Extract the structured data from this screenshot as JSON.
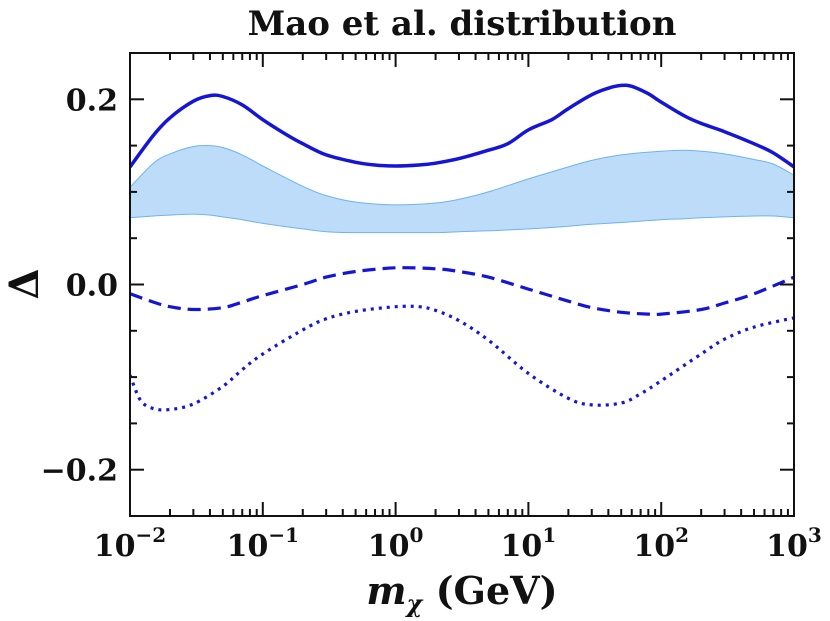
{
  "chart_data": {
    "type": "line",
    "title": "Mao et al. distribution",
    "xlabel": {
      "symbol": "m",
      "subscript": "χ",
      "unit": " (GeV)"
    },
    "ylabel": "Δ",
    "xscale": "log",
    "xlim": [
      0.01,
      1000
    ],
    "ylim": [
      -0.25,
      0.25
    ],
    "x_ticks": [
      {
        "base": "10",
        "exp": "−2",
        "value": 0.01
      },
      {
        "base": "10",
        "exp": "−1",
        "value": 0.1
      },
      {
        "base": "10",
        "exp": "0",
        "value": 1
      },
      {
        "base": "10",
        "exp": "1",
        "value": 10
      },
      {
        "base": "10",
        "exp": "2",
        "value": 100
      },
      {
        "base": "10",
        "exp": "3",
        "value": 1000
      }
    ],
    "y_ticks": [
      {
        "label": "0.2",
        "value": 0.2
      },
      {
        "label": "0.0",
        "value": 0.0
      },
      {
        "label": "−0.2",
        "value": -0.2
      }
    ],
    "colors": {
      "line": "#1515d6",
      "band_fill": "#bcdcfa",
      "band_edge": "#6fb2ec",
      "axis": "#111111"
    },
    "series": [
      {
        "name": "solid",
        "style": "solid",
        "x": [
          0.01,
          0.015,
          0.02,
          0.03,
          0.04,
          0.05,
          0.07,
          0.1,
          0.15,
          0.2,
          0.3,
          0.5,
          0.7,
          1,
          1.5,
          2,
          3,
          5,
          7,
          10,
          15,
          20,
          30,
          40,
          50,
          60,
          80,
          100,
          150,
          200,
          300,
          500,
          700,
          1000
        ],
        "y": [
          0.127,
          0.161,
          0.18,
          0.198,
          0.204,
          0.203,
          0.194,
          0.178,
          0.162,
          0.152,
          0.14,
          0.132,
          0.129,
          0.128,
          0.129,
          0.131,
          0.136,
          0.145,
          0.152,
          0.167,
          0.178,
          0.19,
          0.205,
          0.212,
          0.215,
          0.214,
          0.206,
          0.197,
          0.182,
          0.174,
          0.165,
          0.152,
          0.142,
          0.127
        ]
      },
      {
        "name": "dashed",
        "style": "dashed",
        "x": [
          0.01,
          0.015,
          0.02,
          0.03,
          0.05,
          0.07,
          0.1,
          0.2,
          0.3,
          0.5,
          1,
          2,
          3,
          5,
          10,
          20,
          30,
          50,
          80,
          100,
          200,
          300,
          500,
          1000
        ],
        "y": [
          -0.01,
          -0.019,
          -0.024,
          -0.027,
          -0.025,
          -0.019,
          -0.012,
          0.0,
          0.008,
          0.014,
          0.018,
          0.017,
          0.014,
          0.008,
          -0.005,
          -0.018,
          -0.025,
          -0.03,
          -0.032,
          -0.032,
          -0.027,
          -0.02,
          -0.01,
          0.008
        ]
      },
      {
        "name": "dotted",
        "style": "dotted",
        "x": [
          0.01,
          0.012,
          0.015,
          0.02,
          0.03,
          0.05,
          0.07,
          0.1,
          0.2,
          0.3,
          0.5,
          1,
          1.5,
          2,
          3,
          5,
          10,
          20,
          30,
          50,
          70,
          100,
          200,
          300,
          500,
          1000
        ],
        "y": [
          -0.098,
          -0.125,
          -0.134,
          -0.135,
          -0.129,
          -0.11,
          -0.092,
          -0.075,
          -0.049,
          -0.037,
          -0.029,
          -0.024,
          -0.024,
          -0.028,
          -0.039,
          -0.06,
          -0.096,
          -0.123,
          -0.13,
          -0.128,
          -0.118,
          -0.104,
          -0.075,
          -0.059,
          -0.046,
          -0.036
        ]
      }
    ],
    "band": {
      "name": "shaded band",
      "x": [
        0.01,
        0.015,
        0.02,
        0.03,
        0.04,
        0.05,
        0.07,
        0.1,
        0.2,
        0.3,
        0.5,
        1,
        2,
        3,
        5,
        10,
        20,
        30,
        50,
        100,
        150,
        200,
        300,
        500,
        700,
        1000
      ],
      "upper": [
        0.105,
        0.131,
        0.141,
        0.149,
        0.15,
        0.148,
        0.14,
        0.128,
        0.106,
        0.096,
        0.089,
        0.086,
        0.088,
        0.092,
        0.1,
        0.114,
        0.127,
        0.134,
        0.14,
        0.144,
        0.145,
        0.144,
        0.141,
        0.135,
        0.13,
        0.118
      ],
      "lower": [
        0.072,
        0.074,
        0.075,
        0.076,
        0.075,
        0.073,
        0.07,
        0.066,
        0.06,
        0.057,
        0.056,
        0.056,
        0.056,
        0.057,
        0.058,
        0.06,
        0.063,
        0.065,
        0.067,
        0.07,
        0.071,
        0.072,
        0.073,
        0.074,
        0.074,
        0.072
      ]
    }
  }
}
